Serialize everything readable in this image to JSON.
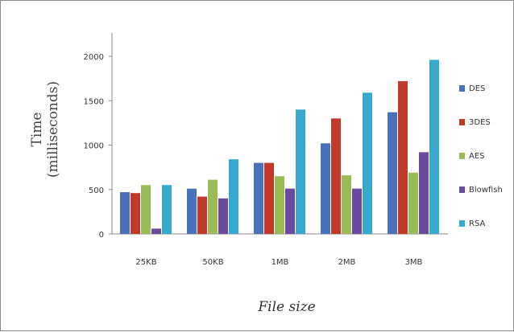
{
  "chart_data": {
    "type": "bar",
    "title": "",
    "xlabel": "File size",
    "ylabel": [
      "Time",
      "(milliseconds)"
    ],
    "categories": [
      "25KB",
      "50KB",
      "1MB",
      "2MB",
      "3MB"
    ],
    "ylim": [
      0,
      2000
    ],
    "yticks": [
      0,
      500,
      1000,
      1500,
      2000
    ],
    "grid": false,
    "legend_position": "right",
    "series": [
      {
        "name": "DES",
        "color": "#4a72b8",
        "values": [
          470,
          510,
          800,
          1020,
          1370
        ]
      },
      {
        "name": "3DES",
        "color": "#c0392b",
        "values": [
          460,
          420,
          800,
          1300,
          1720
        ]
      },
      {
        "name": "AES",
        "color": "#9bbb59",
        "values": [
          550,
          610,
          650,
          660,
          690
        ]
      },
      {
        "name": "Blowfish",
        "color": "#6a4a9c",
        "values": [
          60,
          400,
          510,
          510,
          920
        ]
      },
      {
        "name": "RSA",
        "color": "#37a9cc",
        "values": [
          550,
          840,
          1400,
          1590,
          1960
        ]
      }
    ]
  }
}
